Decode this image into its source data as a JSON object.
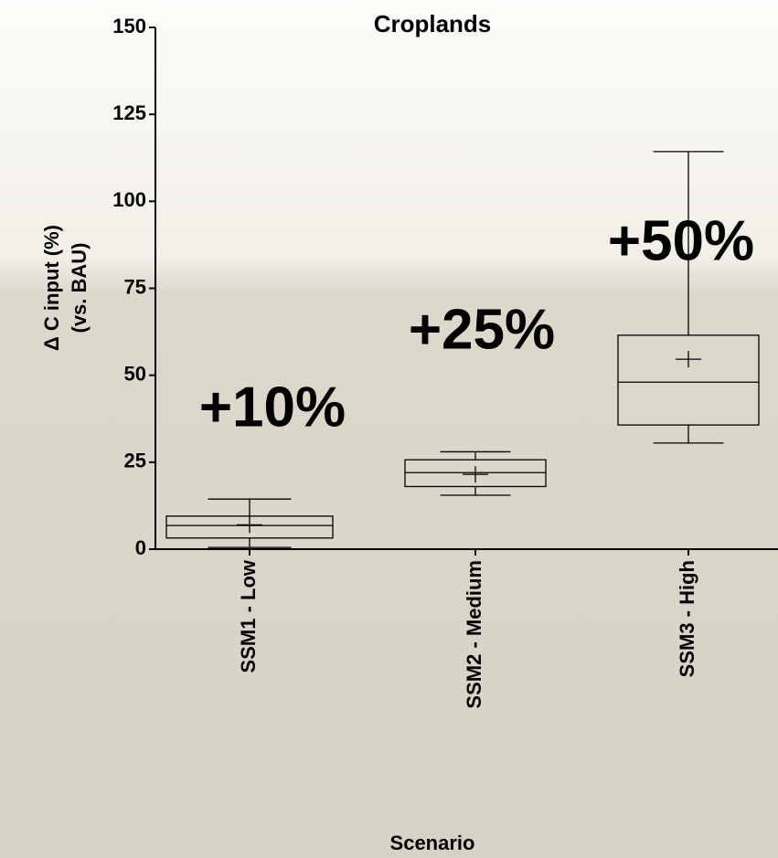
{
  "chart_data": {
    "type": "box",
    "title": "Croplands",
    "y_label_lines": [
      "Δ C input (%)",
      "(vs. BAU)"
    ],
    "x_label": "Scenario",
    "categories": [
      "SSM1 - Low",
      "SSM2 - Medium",
      "SSM3 - High"
    ],
    "whisker_low": [
      0.5,
      15.5,
      30.5
    ],
    "q1": [
      3.2,
      18,
      35.7
    ],
    "median": [
      6.8,
      22,
      48
    ],
    "q3": [
      9.5,
      25.7,
      61.5
    ],
    "whisker_high": [
      14.4,
      28,
      114.3
    ],
    "mean": [
      7,
      21.5,
      54.6
    ],
    "color": "#000000",
    "annotations": [
      "+10%",
      "+25%",
      "+50%"
    ],
    "annotation_color": "#ff0000",
    "ylim": [
      0,
      150
    ],
    "yticks": [
      0,
      25,
      50,
      75,
      100,
      125,
      150
    ]
  }
}
